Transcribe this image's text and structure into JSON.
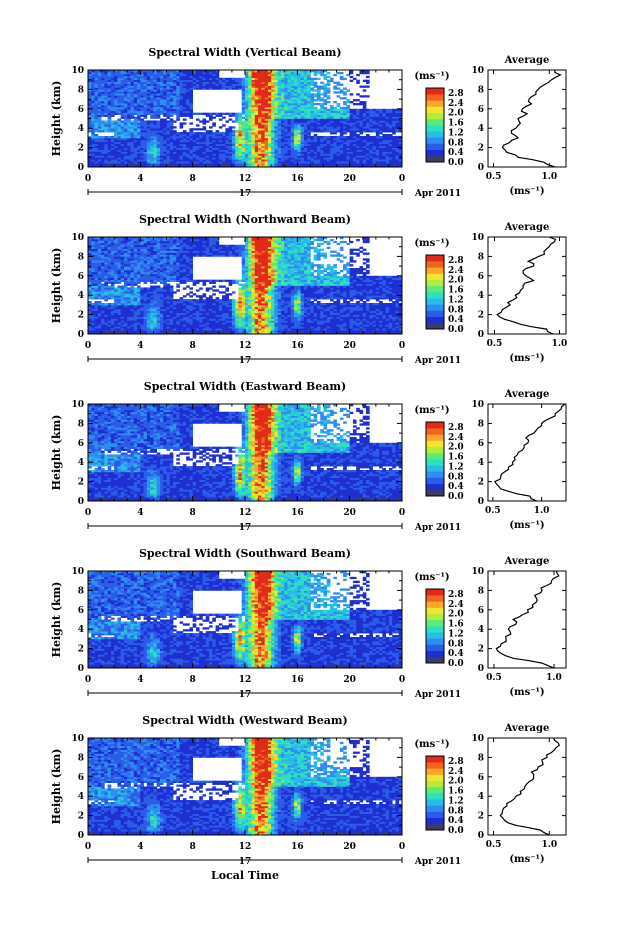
{
  "figure": {
    "xlabel": "Local Time",
    "ylabel": "Height (km)",
    "colorbar_unit": "(ms⁻¹)",
    "colorbar_ticks": [
      "2.8",
      "2.4",
      "2.0",
      "1.6",
      "1.2",
      "0.8",
      "0.4",
      "0.0"
    ],
    "x_ticks": [
      "0",
      "4",
      "8",
      "12",
      "16",
      "20",
      "0"
    ],
    "y_ticks": [
      "0",
      "2",
      "4",
      "6",
      "8",
      "10"
    ],
    "date_day": "17",
    "date_label": "Apr 2011",
    "avg_title": "Average",
    "avg_xlabel": "(ms⁻¹)"
  },
  "chart_data": [
    {
      "type": "heatmap",
      "title": "Spectral Width (Vertical Beam)",
      "xlabel": "",
      "ylabel": "Height (km)",
      "xlim": [
        0,
        24
      ],
      "ylim": [
        0,
        10
      ],
      "colorbar": {
        "label": "(ms⁻¹)",
        "range": [
          0.0,
          3.0
        ]
      },
      "average_profile": {
        "title": "Average",
        "xlabel": "(ms⁻¹)",
        "xlim": [
          0.45,
          1.15
        ],
        "x_ticks": [
          "0.5",
          "1.0"
        ],
        "height": [
          0,
          0.5,
          1,
          1.5,
          2,
          2.5,
          3,
          3.5,
          4,
          4.5,
          5,
          5.5,
          6,
          6.5,
          7,
          7.5,
          8,
          8.5,
          9,
          9.5,
          10
        ],
        "width": [
          1.05,
          0.95,
          0.72,
          0.62,
          0.58,
          0.64,
          0.72,
          0.66,
          0.7,
          0.74,
          0.72,
          0.8,
          0.76,
          0.84,
          0.82,
          0.88,
          0.9,
          0.96,
          1.02,
          1.1,
          1.05
        ]
      }
    },
    {
      "type": "heatmap",
      "title": "Spectral Width (Northward Beam)",
      "xlabel": "",
      "ylabel": "Height (km)",
      "xlim": [
        0,
        24
      ],
      "ylim": [
        0,
        10
      ],
      "colorbar": {
        "label": "(ms⁻¹)",
        "range": [
          0.0,
          3.0
        ]
      },
      "average_profile": {
        "title": "Average",
        "xlabel": "(ms⁻¹)",
        "xlim": [
          0.45,
          1.05
        ],
        "x_ticks": [
          "0.5",
          "1.0"
        ],
        "height": [
          0,
          0.5,
          1,
          1.5,
          2,
          2.5,
          3,
          3.5,
          4,
          4.5,
          5,
          5.5,
          6,
          6.5,
          7,
          7.5,
          8,
          8.5,
          9,
          9.5,
          10
        ],
        "width": [
          0.95,
          0.9,
          0.7,
          0.58,
          0.52,
          0.56,
          0.62,
          0.64,
          0.66,
          0.7,
          0.72,
          0.8,
          0.74,
          0.72,
          0.8,
          0.76,
          0.84,
          0.88,
          0.92,
          0.96,
          0.92
        ]
      }
    },
    {
      "type": "heatmap",
      "title": "Spectral Width (Eastward Beam)",
      "xlabel": "",
      "ylabel": "Height (km)",
      "xlim": [
        0,
        24
      ],
      "ylim": [
        0,
        10
      ],
      "colorbar": {
        "label": "(ms⁻¹)",
        "range": [
          0.0,
          3.0
        ]
      },
      "average_profile": {
        "title": "Average",
        "xlabel": "(ms⁻¹)",
        "xlim": [
          0.45,
          1.25
        ],
        "x_ticks": [
          "0.5",
          "1.0"
        ],
        "height": [
          0,
          0.5,
          1,
          1.5,
          2,
          2.5,
          3,
          3.5,
          4,
          4.5,
          5,
          5.5,
          6,
          6.5,
          7,
          7.5,
          8,
          8.5,
          9,
          9.5,
          10
        ],
        "width": [
          0.95,
          0.88,
          0.66,
          0.56,
          0.52,
          0.58,
          0.62,
          0.66,
          0.7,
          0.72,
          0.76,
          0.82,
          0.86,
          0.84,
          0.92,
          0.96,
          1.0,
          1.08,
          1.14,
          1.2,
          1.24
        ]
      }
    },
    {
      "type": "heatmap",
      "title": "Spectral Width (Southward Beam)",
      "xlabel": "",
      "ylabel": "Height (km)",
      "xlim": [
        0,
        24
      ],
      "ylim": [
        0,
        10
      ],
      "colorbar": {
        "label": "(ms⁻¹)",
        "range": [
          0.0,
          3.0
        ]
      },
      "average_profile": {
        "title": "Average",
        "xlabel": "(ms⁻¹)",
        "xlim": [
          0.45,
          1.1
        ],
        "x_ticks": [
          "0.5",
          "1.0"
        ],
        "height": [
          0,
          0.5,
          1,
          1.5,
          2,
          2.5,
          3,
          3.5,
          4,
          4.5,
          5,
          5.5,
          6,
          6.5,
          7,
          7.5,
          8,
          8.5,
          9,
          9.5,
          10
        ],
        "width": [
          1.0,
          0.9,
          0.66,
          0.56,
          0.52,
          0.56,
          0.6,
          0.64,
          0.62,
          0.68,
          0.66,
          0.74,
          0.78,
          0.82,
          0.86,
          0.84,
          0.9,
          0.94,
          0.98,
          1.04,
          1.02
        ]
      }
    },
    {
      "type": "heatmap",
      "title": "Spectral Width (Westward Beam)",
      "xlabel": "Local Time",
      "ylabel": "Height (km)",
      "xlim": [
        0,
        24
      ],
      "ylim": [
        0,
        10
      ],
      "colorbar": {
        "label": "(ms⁻¹)",
        "range": [
          0.0,
          3.0
        ]
      },
      "average_profile": {
        "title": "Average",
        "xlabel": "(ms⁻¹)",
        "xlim": [
          0.45,
          1.15
        ],
        "x_ticks": [
          "0.5",
          "1.0"
        ],
        "height": [
          0,
          0.5,
          1,
          1.5,
          2,
          2.5,
          3,
          3.5,
          4,
          4.5,
          5,
          5.5,
          6,
          6.5,
          7,
          7.5,
          8,
          8.5,
          9,
          9.5,
          10
        ],
        "width": [
          1.0,
          0.92,
          0.7,
          0.6,
          0.56,
          0.58,
          0.62,
          0.66,
          0.7,
          0.74,
          0.78,
          0.82,
          0.86,
          0.84,
          0.9,
          0.94,
          0.98,
          1.02,
          1.06,
          1.08,
          1.04
        ]
      }
    }
  ],
  "colors": {
    "colormap": [
      "#3c3c64",
      "#1e2fd2",
      "#2b5ce8",
      "#2f8cf0",
      "#27bde6",
      "#2ee0c0",
      "#5ceb78",
      "#b4ec3c",
      "#f0e632",
      "#f9a82a",
      "#f4641e",
      "#e02a1a"
    ]
  }
}
